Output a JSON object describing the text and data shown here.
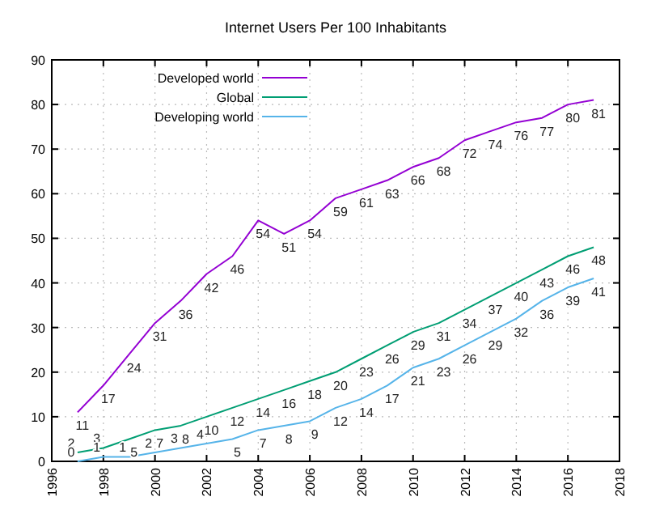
{
  "chart_data": {
    "type": "line",
    "title": "Internet Users Per 100 Inhabitants",
    "x": [
      1997,
      1998,
      1999,
      2000,
      2001,
      2002,
      2003,
      2004,
      2005,
      2006,
      2007,
      2008,
      2009,
      2010,
      2011,
      2012,
      2013,
      2014,
      2015,
      2016,
      2017
    ],
    "series": [
      {
        "name": "Developed world",
        "color": "#9400d3",
        "values": [
          11,
          17,
          24,
          31,
          36,
          42,
          46,
          54,
          51,
          54,
          59,
          61,
          63,
          66,
          68,
          72,
          74,
          76,
          77,
          80,
          81
        ]
      },
      {
        "name": "Global",
        "color": "#009e73",
        "values": [
          2,
          3,
          5,
          7,
          8,
          10,
          12,
          14,
          16,
          18,
          20,
          23,
          26,
          29,
          31,
          34,
          37,
          40,
          43,
          46,
          48
        ]
      },
      {
        "name": "Developing world",
        "color": "#56b4e9",
        "values": [
          0,
          1,
          1,
          2,
          3,
          4,
          5,
          7,
          8,
          9,
          12,
          14,
          17,
          21,
          23,
          26,
          29,
          32,
          36,
          39,
          41
        ]
      }
    ],
    "xlim": [
      1996,
      2018
    ],
    "xticks": [
      1996,
      1998,
      2000,
      2002,
      2004,
      2006,
      2008,
      2010,
      2012,
      2014,
      2016,
      2018
    ],
    "ylim": [
      0,
      90
    ],
    "yticks": [
      0,
      10,
      20,
      30,
      40,
      50,
      60,
      70,
      80,
      90
    ],
    "grid": true,
    "legend": "top left",
    "data_labels": true,
    "line_style": "solid",
    "marker": "none"
  }
}
